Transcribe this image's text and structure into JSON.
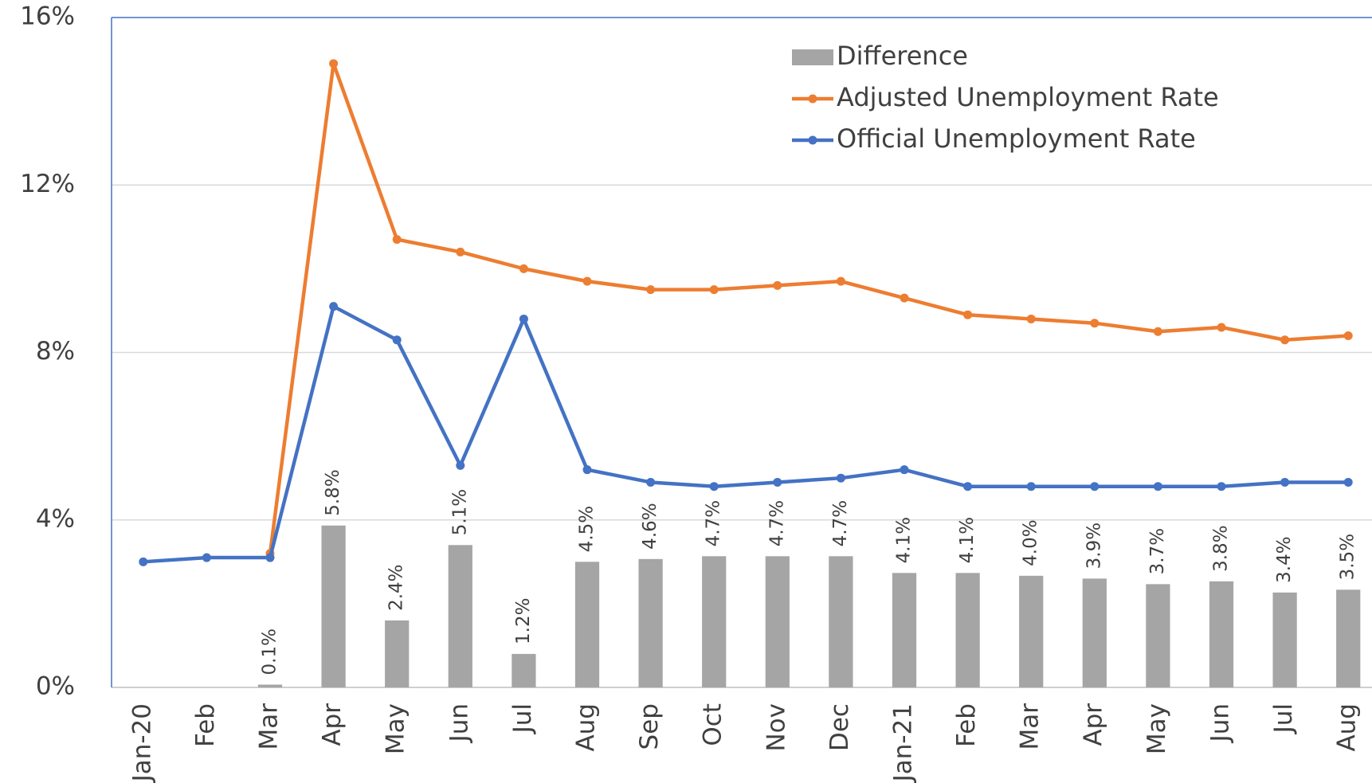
{
  "chart_data": {
    "type": "combo",
    "categories": [
      "Jan-20",
      "Feb",
      "Mar",
      "Apr",
      "May",
      "Jun",
      "Jul",
      "Aug",
      "Sep",
      "Oct",
      "Nov",
      "Dec",
      "Jan-21",
      "Feb",
      "Mar",
      "Apr",
      "May",
      "Jun",
      "Jul",
      "Aug"
    ],
    "series": [
      {
        "name": "Difference",
        "type": "bar",
        "axis": "y2",
        "color": "#a5a5a5",
        "values": [
          null,
          null,
          0.1,
          5.8,
          2.4,
          5.1,
          1.2,
          4.5,
          4.6,
          4.7,
          4.7,
          4.7,
          4.1,
          4.1,
          4.0,
          3.9,
          3.7,
          3.8,
          3.4,
          3.5
        ],
        "value_labels": [
          null,
          null,
          "0.1%",
          "5.8%",
          "2.4%",
          "5.1%",
          "1.2%",
          "4.5%",
          "4.6%",
          "4.7%",
          "4.7%",
          "4.7%",
          "4.1%",
          "4.1%",
          "4.0%",
          "3.9%",
          "3.7%",
          "3.8%",
          "3.4%",
          "3.5%"
        ]
      },
      {
        "name": "Adjusted Unemployment Rate",
        "type": "line",
        "color": "#ed7d31",
        "values": [
          null,
          null,
          3.2,
          14.9,
          10.7,
          10.4,
          10.0,
          9.7,
          9.5,
          9.5,
          9.6,
          9.7,
          9.3,
          8.9,
          8.8,
          8.7,
          8.5,
          8.6,
          8.3,
          8.4
        ]
      },
      {
        "name": "Official Unemployment Rate",
        "type": "line",
        "color": "#4472c4",
        "values": [
          3.0,
          3.1,
          3.1,
          9.1,
          8.3,
          5.3,
          8.8,
          5.2,
          4.9,
          4.8,
          4.9,
          5.0,
          5.2,
          4.8,
          4.8,
          4.8,
          4.8,
          4.8,
          4.9,
          4.9
        ]
      }
    ],
    "ylim": [
      0,
      16
    ],
    "yticks": [
      {
        "value": 0,
        "label": "0%"
      },
      {
        "value": 4,
        "label": "4%"
      },
      {
        "value": 8,
        "label": "8%"
      },
      {
        "value": 12,
        "label": "12%"
      },
      {
        "value": 16,
        "label": "16%"
      }
    ],
    "y2lim": [
      0,
      24
    ],
    "grid": true,
    "legend": "top-right"
  }
}
